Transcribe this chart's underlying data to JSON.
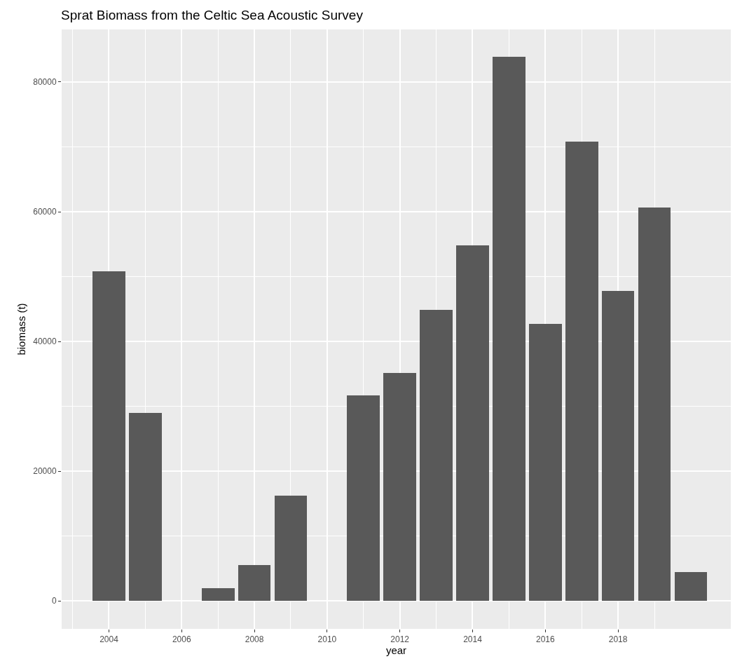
{
  "chart_data": {
    "type": "bar",
    "title": "Sprat Biomass from the Celtic Sea Acoustic Survey",
    "xlabel": "year",
    "ylabel": "biomass (t)",
    "x": [
      2004,
      2005,
      2007,
      2008,
      2009,
      2011,
      2012,
      2013,
      2014,
      2015,
      2016,
      2017,
      2018,
      2019,
      2020
    ],
    "values": [
      50800,
      29000,
      2000,
      5500,
      16200,
      31700,
      35100,
      44900,
      54800,
      83900,
      42700,
      70800,
      47800,
      60600,
      4500
    ],
    "color": "#595959",
    "xlim": [
      2002.7,
      2021.1
    ],
    "xticks": [
      2004,
      2006,
      2008,
      2010,
      2012,
      2014,
      2016,
      2018
    ],
    "ylim": [
      -4300,
      88100
    ],
    "yticks": [
      0,
      20000,
      40000,
      60000,
      80000
    ],
    "grid": true
  }
}
